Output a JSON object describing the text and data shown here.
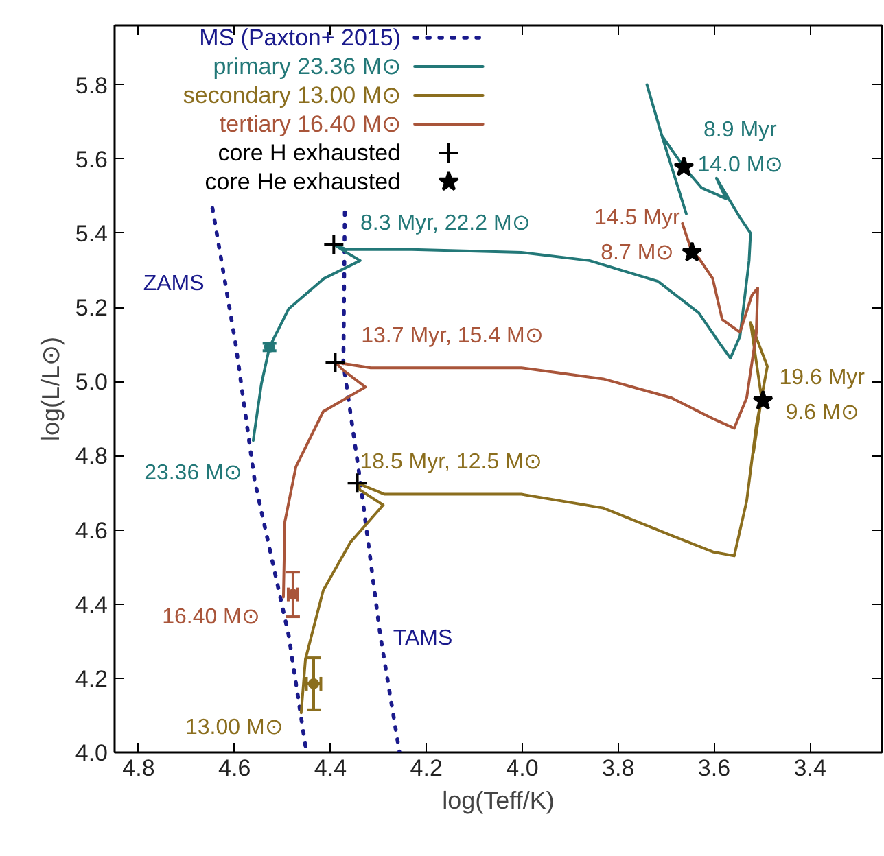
{
  "chart_data": {
    "type": "line",
    "xlabel": "log(Teff/K)",
    "ylabel": "log(L/L⊙)",
    "xlim": [
      4.85,
      3.25
    ],
    "ylim": [
      4.0,
      5.96
    ],
    "xticks": [
      4.8,
      4.6,
      4.4,
      4.2,
      {
        "value": 4.0,
        "label": "4.0"
      },
      3.8,
      3.6,
      3.4
    ],
    "yticks": [
      {
        "value": 4.0,
        "label": "4.0"
      },
      4.2,
      4.4,
      4.6,
      4.8,
      {
        "value": 5.0,
        "label": "5.0"
      },
      5.2,
      5.4,
      5.6,
      5.8
    ],
    "grid": false,
    "legend": "top left",
    "series": [
      {
        "name": "MS (Paxton+ 2015)",
        "line_style": "dotted",
        "color": "#1a1a8c",
        "x": [
          4.646,
          4.598,
          4.558,
          4.487,
          4.45
        ],
        "values": [
          5.467,
          5.104,
          4.733,
          4.315,
          4.0
        ]
      },
      {
        "line_style": "dotted",
        "color": "#1a1a8c",
        "x": [
          4.37,
          4.373,
          4.338,
          4.296,
          4.256
        ],
        "values": [
          5.456,
          5.048,
          4.733,
          4.315,
          4.0
        ]
      },
      {
        "name": "primary 23.36 M⊙",
        "color": "#237878",
        "x": [
          4.561,
          4.544,
          4.527,
          4.487,
          4.413,
          4.338,
          4.367,
          4.393,
          4.367,
          4.23,
          4.002,
          3.86,
          3.717,
          3.632,
          3.589,
          3.566,
          3.546,
          3.527,
          3.524,
          3.547,
          3.595,
          3.575,
          3.626,
          3.663,
          3.709,
          3.658,
          3.709,
          3.74
        ],
        "values": [
          4.841,
          4.993,
          5.093,
          5.196,
          5.278,
          5.326,
          5.348,
          5.37,
          5.356,
          5.356,
          5.348,
          5.326,
          5.27,
          5.185,
          5.104,
          5.063,
          5.122,
          5.326,
          5.4,
          5.444,
          5.548,
          5.493,
          5.522,
          5.578,
          5.663,
          5.452,
          5.663,
          5.8
        ]
      },
      {
        "name": "secondary 13.00 M⊙",
        "color": "#8b6e1e",
        "x": [
          4.461,
          4.452,
          4.415,
          4.358,
          4.29,
          4.338,
          4.344,
          4.287,
          4.002,
          3.831,
          3.689,
          3.603,
          3.558,
          3.532,
          3.512,
          3.489,
          3.524,
          3.501,
          3.518
        ],
        "values": [
          4.107,
          4.252,
          4.437,
          4.567,
          4.667,
          4.707,
          4.726,
          4.696,
          4.696,
          4.659,
          4.585,
          4.541,
          4.53,
          4.678,
          4.881,
          5.041,
          5.159,
          4.956,
          4.807
        ]
      },
      {
        "name": "tertiary 16.40 M⊙",
        "color": "#a9553a",
        "x": [
          4.498,
          4.495,
          4.472,
          4.415,
          4.327,
          4.373,
          4.39,
          4.316,
          4.002,
          3.831,
          3.689,
          3.603,
          3.558,
          3.532,
          3.512,
          3.509,
          3.521,
          3.546,
          3.583,
          3.603,
          3.632,
          3.646,
          3.666
        ],
        "values": [
          4.419,
          4.622,
          4.77,
          4.919,
          4.985,
          5.03,
          5.052,
          5.037,
          5.037,
          5.007,
          4.956,
          4.9,
          4.874,
          4.956,
          5.13,
          5.252,
          5.233,
          5.133,
          5.167,
          5.278,
          5.333,
          5.348,
          5.426
        ]
      },
      {
        "name": "core H exhausted",
        "type": "scatter",
        "marker": "cross",
        "color": "#000000",
        "x": [
          4.393,
          4.39,
          4.344
        ],
        "values": [
          5.37,
          5.052,
          4.726
        ]
      },
      {
        "name": "core He exhausted",
        "type": "scatter",
        "marker": "star",
        "color": "#000000",
        "x": [
          3.663,
          3.646,
          3.498
        ],
        "values": [
          5.578,
          5.348,
          4.948
        ]
      },
      {
        "type": "scatter",
        "marker": "circle",
        "color": "#237878",
        "x": [
          4.527
        ],
        "values": [
          5.093
        ],
        "errors": [
          0.01
        ]
      },
      {
        "type": "scatter",
        "marker": "circle",
        "color": "#a9553a",
        "x": [
          4.478
        ],
        "values": [
          4.426
        ],
        "errors": [
          0.06
        ],
        "xerrors": [
          0.01
        ]
      },
      {
        "type": "scatter",
        "marker": "circle",
        "color": "#8b6e1e",
        "x": [
          4.435
        ],
        "values": [
          4.185
        ],
        "errors": [
          0.07
        ],
        "xerrors": [
          0.015
        ]
      }
    ],
    "annotations": [
      {
        "text": "8.3 Myr, 22.2 M⊙",
        "x": 4.393,
        "y": 5.37
      },
      {
        "text": "13.7 Myr, 15.4 M⊙",
        "x": 4.39,
        "y": 5.052
      },
      {
        "text": "18.5 Myr, 12.5 M⊙",
        "x": 4.344,
        "y": 4.726
      },
      {
        "text": "8.9 Myr\n14.0 M⊙",
        "x": 3.663,
        "y": 5.578
      },
      {
        "text": "14.5 Myr\n8.7 M⊙",
        "x": 3.646,
        "y": 5.348
      },
      {
        "text": "19.6 Myr\n9.6 M⊙",
        "x": 3.498,
        "y": 4.948
      },
      {
        "text": "ZAMS",
        "x": 4.598,
        "y": 5.104
      },
      {
        "text": "TAMS",
        "x": 4.296,
        "y": 4.315
      },
      {
        "text": "23.36 M⊙",
        "x": 4.561,
        "y": 4.841
      },
      {
        "text": "16.40 M⊙",
        "x": 4.498,
        "y": 4.419
      },
      {
        "text": "13.00 M⊙",
        "x": 4.461,
        "y": 4.107
      }
    ]
  }
}
